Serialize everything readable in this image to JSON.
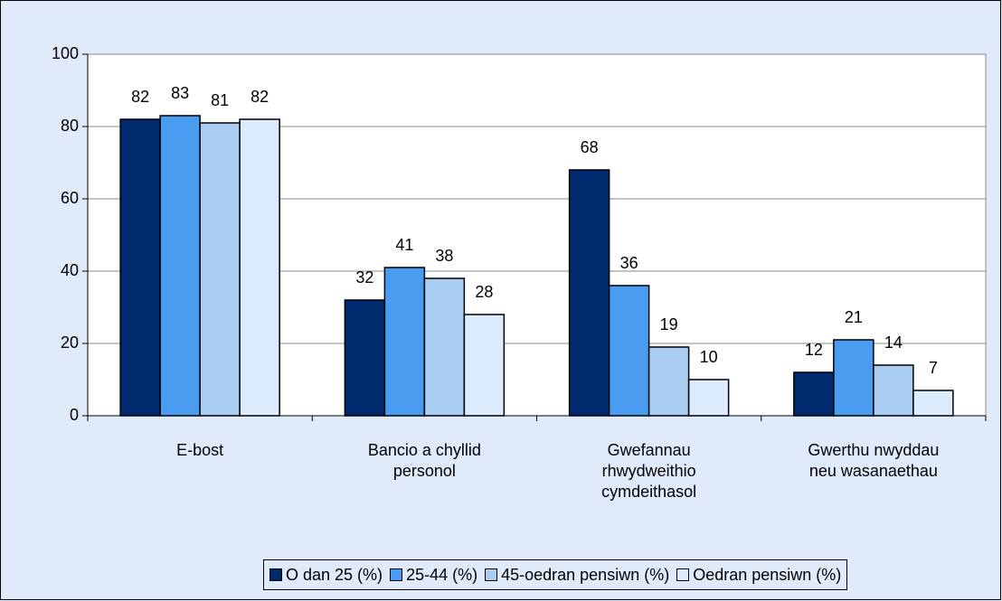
{
  "chart_data": {
    "type": "bar",
    "categories": [
      "E-bost",
      "Bancio a chyllid personol",
      "Gwefannau rhwydweithio cymdeithasol",
      "Gwerthu nwyddau neu wasanaethau"
    ],
    "series": [
      {
        "name": "O dan 25 (%)",
        "color": "#002a6e",
        "values": [
          82,
          32,
          68,
          12
        ]
      },
      {
        "name": "25-44 (%)",
        "color": "#4a9cf0",
        "values": [
          83,
          41,
          36,
          21
        ]
      },
      {
        "name": "45-oedran pensiwn (%)",
        "color": "#a9ccf3",
        "values": [
          81,
          38,
          19,
          14
        ]
      },
      {
        "name": "Oedran pensiwn (%)",
        "color": "#dcebfd",
        "values": [
          82,
          28,
          10,
          7
        ]
      }
    ],
    "ylim": [
      0,
      100
    ],
    "yticks": [
      0,
      20,
      40,
      60,
      80,
      100
    ],
    "grid": true,
    "legend": "bottom"
  }
}
